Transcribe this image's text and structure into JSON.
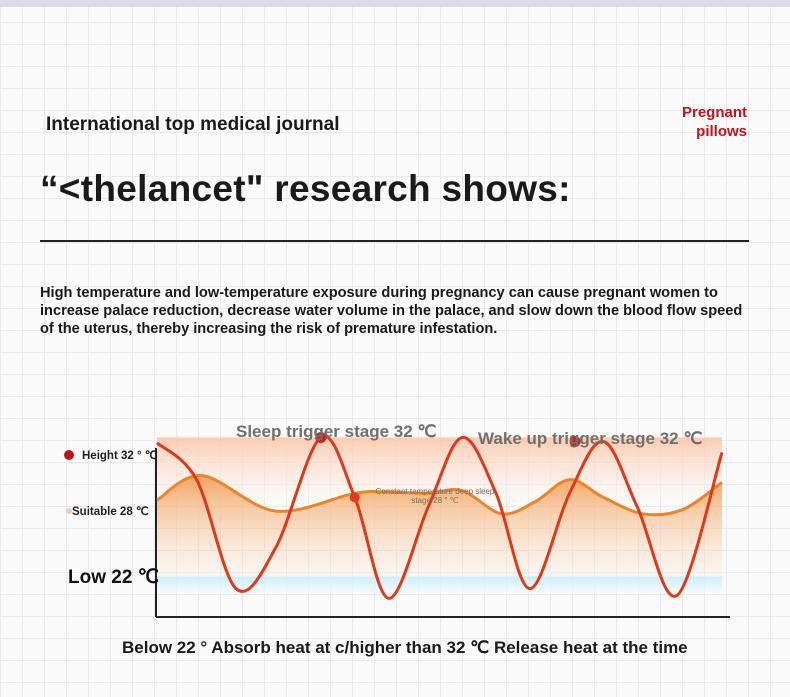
{
  "header": {
    "journal": "International top medical journal",
    "brand_line1": "Pregnant",
    "brand_line2": "pillows",
    "headline": "“<thelancet\" research shows:"
  },
  "intro": "High temperature and low-temperature exposure during pregnancy can cause pregnant women to increase palace reduction, decrease water volume in the palace, and slow down the blood flow speed of the uterus, thereby increasing the risk of premature infestation.",
  "footer": "Below 22 ° Absorb heat at c/higher than 32 ℃ Release heat at the time",
  "colors": {
    "high_zone": "#fbd0b8",
    "low_zone": "#d2f0fb",
    "body_temp_line": "#dd3a1a",
    "pillow_line": "#e8862a",
    "marker": "#d81e1e",
    "brand": "#c0141c"
  },
  "chart_data": {
    "type": "line",
    "y_levels": [
      {
        "label": "Height 32 ° ℃",
        "value": 32
      },
      {
        "label": "Suitable 28 ℃",
        "value": 28
      },
      {
        "label": "Low 22 ℃",
        "value": 22
      }
    ],
    "ylim": [
      19.5,
      33
    ],
    "xlim": [
      0,
      100
    ],
    "annotations": [
      {
        "text": "Sleep trigger stage 32 ℃",
        "x": 29,
        "y": 32
      },
      {
        "text": "Wake up trigger stage 32 ℃",
        "x": 74,
        "y": 32
      },
      {
        "text": "Constant temperature deep sleep stage 28 ° ℃",
        "x": 35,
        "y": 28
      }
    ],
    "series": [
      {
        "x": [
          0,
          7,
          14,
          21,
          29,
          35,
          41,
          48,
          54,
          60,
          66,
          73,
          79,
          85,
          92,
          100
        ],
        "y": [
          32.2,
          29.5,
          21.5,
          24.5,
          32.6,
          28.2,
          20.8,
          27.5,
          32.6,
          28.5,
          21.5,
          28.5,
          32.3,
          27.5,
          21.0,
          31.5
        ]
      },
      {
        "x": [
          0,
          8,
          21,
          35,
          41,
          48,
          54,
          61,
          67,
          73,
          79,
          86,
          93,
          100
        ],
        "y": [
          28.0,
          29.8,
          27.2,
          28.5,
          28.6,
          28.5,
          28.7,
          27.0,
          27.9,
          29.5,
          28.2,
          27.0,
          27.3,
          29.3
        ]
      }
    ],
    "markers": [
      {
        "x": 29,
        "y": 32.6
      },
      {
        "x": 35,
        "y": 28.2
      },
      {
        "x": 74,
        "y": 32.3
      }
    ],
    "grid": false
  }
}
